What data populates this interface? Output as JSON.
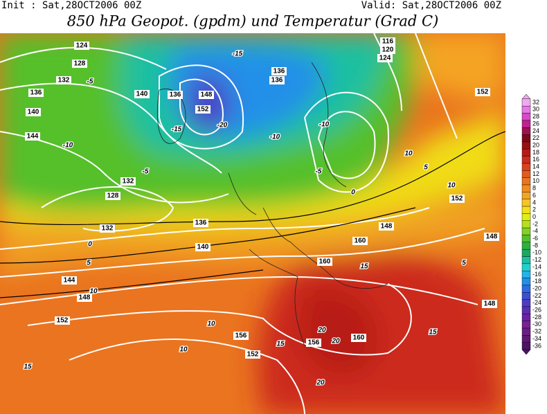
{
  "header": {
    "init": "Init : Sat,28OCT2006 00Z",
    "valid": "Valid: Sat,28OCT2006 00Z",
    "title": "850 hPa Geopot. (gpdm) und Temperatur (Grad C)"
  },
  "colorbar": {
    "labels": [
      32,
      30,
      28,
      26,
      24,
      22,
      20,
      18,
      16,
      14,
      12,
      10,
      8,
      6,
      4,
      2,
      0,
      -2,
      -4,
      -6,
      -8,
      -10,
      -12,
      -14,
      -16,
      -18,
      -20,
      -22,
      -24,
      -26,
      -28,
      -30,
      -32,
      -34,
      -36
    ],
    "colors": [
      "#f0a8f0",
      "#e878e8",
      "#d848c8",
      "#c02090",
      "#a01050",
      "#7a0818",
      "#981010",
      "#b81a18",
      "#cc2c1c",
      "#dc401c",
      "#e45a1e",
      "#ea7420",
      "#f08c22",
      "#f4a424",
      "#f6c424",
      "#f2e018",
      "#e0ee10",
      "#b4e01c",
      "#84d024",
      "#54c02c",
      "#2cb040",
      "#1ca860",
      "#1cc0a0",
      "#20d0d0",
      "#20b4e8",
      "#2090e8",
      "#2c6ce0",
      "#3c50d0",
      "#4c3cc4",
      "#5c2cb4",
      "#6c20a4",
      "#782094",
      "#6c1c84",
      "#5c1874",
      "#4c1464"
    ]
  },
  "contour_labels": [
    "124",
    "128",
    "132",
    "136",
    "140",
    "140",
    "144",
    "152",
    "148",
    "136",
    "132",
    "128",
    "132",
    "136",
    "140",
    "144",
    "148",
    "152",
    "156",
    "152",
    "156",
    "160",
    "160",
    "160",
    "136",
    "136",
    "116",
    "120",
    "124",
    "152",
    "152",
    "148",
    "148",
    "-5",
    "-10",
    "-15",
    "-20",
    "-10",
    "-5",
    "0",
    "5",
    "10",
    "10",
    "15",
    "20",
    "20",
    "20",
    "15",
    "15",
    "10",
    "5",
    "10",
    "15",
    "-10",
    "-15",
    "-5",
    "0",
    "5",
    "10",
    "148"
  ]
}
